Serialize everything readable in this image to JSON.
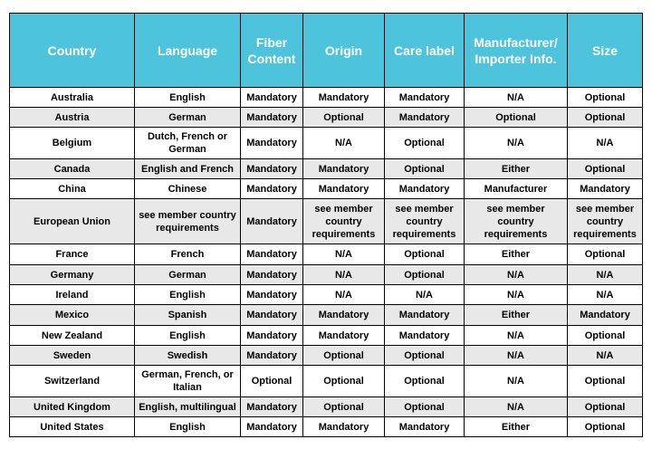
{
  "table": {
    "header": [
      "Country",
      "Language",
      "Fiber Content",
      "Origin",
      "Care label",
      "Manufacturer/ Importer Info.",
      "Size"
    ],
    "rows": [
      [
        "Australia",
        "English",
        "Mandatory",
        "Mandatory",
        "Mandatory",
        "N/A",
        "Optional"
      ],
      [
        "Austria",
        "German",
        "Mandatory",
        "Optional",
        "Mandatory",
        "Optional",
        "Optional"
      ],
      [
        "Belgium",
        "Dutch, French or German",
        "Mandatory",
        "N/A",
        "Optional",
        "N/A",
        "N/A"
      ],
      [
        "Canada",
        "English and French",
        "Mandatory",
        "Mandatory",
        "Optional",
        "Either",
        "Optional"
      ],
      [
        "China",
        "Chinese",
        "Mandatory",
        "Mandatory",
        "Mandatory",
        "Manufacturer",
        "Mandatory"
      ],
      [
        "European Union",
        "see member country requirements",
        "Mandatory",
        "see member country requirements",
        "see member country requirements",
        "see member country requirements",
        "see member country requirements"
      ],
      [
        "France",
        "French",
        "Mandatory",
        "N/A",
        "Optional",
        "Either",
        "Optional"
      ],
      [
        "Germany",
        "German",
        "Mandatory",
        "N/A",
        "Optional",
        "N/A",
        "N/A"
      ],
      [
        "Ireland",
        "English",
        "Mandatory",
        "N/A",
        "N/A",
        "N/A",
        "N/A"
      ],
      [
        "Mexico",
        "Spanish",
        "Mandatory",
        "Mandatory",
        "Mandatory",
        "Either",
        "Mandatory"
      ],
      [
        "New Zealand",
        "English",
        "Mandatory",
        "Mandatory",
        "Mandatory",
        "N/A",
        "Optional"
      ],
      [
        "Sweden",
        "Swedish",
        "Mandatory",
        "Optional",
        "Optional",
        "N/A",
        "N/A"
      ],
      [
        "Switzerland",
        "German, French, or Italian",
        "Optional",
        "Optional",
        "Optional",
        "N/A",
        "Optional"
      ],
      [
        "United Kingdom",
        "English, multilingual",
        "Mandatory",
        "Optional",
        "Optional",
        "N/A",
        "Optional"
      ],
      [
        "United States",
        "English",
        "Mandatory",
        "Mandatory",
        "Mandatory",
        "Either",
        "Optional"
      ]
    ]
  }
}
